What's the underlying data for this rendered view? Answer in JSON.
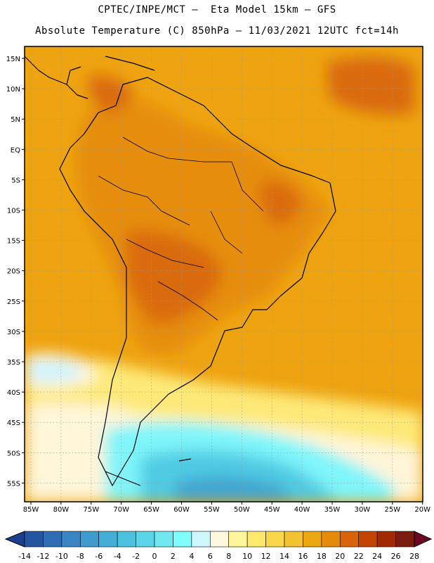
{
  "header": {
    "line1": "CPTEC/INPE/MCT –  Eta Model 15km – GFS",
    "line2": "Absolute Temperature (C) 850hPa – 11/03/2021 12UTC fct=14h"
  },
  "map": {
    "lat_labels": [
      "15N",
      "10N",
      "5N",
      "EQ",
      "5S",
      "10S",
      "15S",
      "20S",
      "25S",
      "30S",
      "35S",
      "40S",
      "45S",
      "50S",
      "55S"
    ],
    "lon_labels": [
      "85W",
      "80W",
      "75W",
      "70W",
      "65W",
      "60W",
      "55W",
      "50W",
      "45W",
      "40W",
      "35W",
      "30W",
      "25W",
      "20W"
    ]
  },
  "colorbar": {
    "labels": [
      "-14",
      "-12",
      "-10",
      "-8",
      "-6",
      "-4",
      "-2",
      "0",
      "2",
      "4",
      "6",
      "8",
      "10",
      "12",
      "14",
      "16",
      "18",
      "20",
      "22",
      "24",
      "26",
      "28"
    ],
    "colors": [
      "#1a3f8c",
      "#2456a0",
      "#2f6eb4",
      "#3a86c4",
      "#3f9bce",
      "#44aed6",
      "#4cc2df",
      "#5ad6e8",
      "#6fe8f0",
      "#7ffcfc",
      "#cef6ff",
      "#fff8e0",
      "#fff59a",
      "#fde96b",
      "#f8d749",
      "#f2c232",
      "#eaa712",
      "#e58a0a",
      "#d86308",
      "#c34504",
      "#a22a02",
      "#7a1c0e",
      "#6a0823"
    ]
  }
}
